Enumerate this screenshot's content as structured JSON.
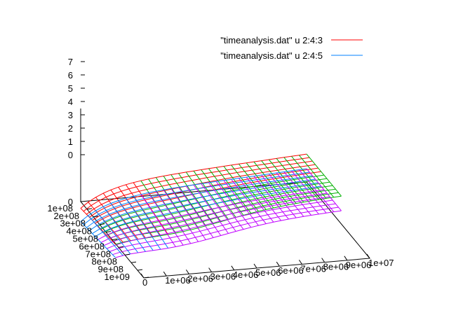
{
  "chart_data": {
    "type": "surface-3d",
    "title": "",
    "xlabel": "",
    "ylabel": "",
    "zlabel": "",
    "legend": {
      "placement": "top-right",
      "entries": [
        {
          "label": "\"timeanalysis.dat\" u 2:4:3",
          "color": "#ff0000"
        },
        {
          "label": "\"timeanalysis.dat\" u 2:4:5",
          "color": "#0080ff"
        }
      ]
    },
    "z_axis": {
      "range": [
        0,
        7
      ],
      "tick_labels": [
        "0",
        "1",
        "2",
        "3",
        "4",
        "5",
        "6",
        "7"
      ]
    },
    "y_axis": {
      "range": [
        0,
        1000000000.0
      ],
      "tick_labels": [
        "0",
        "1e+08",
        "2e+08",
        "3e+08",
        "4e+08",
        "5e+08",
        "6e+08",
        "7e+08",
        "8e+08",
        "9e+08",
        "1e+09"
      ]
    },
    "x_axis": {
      "range": [
        0,
        10000000.0
      ],
      "tick_labels": [
        "0",
        "1e+06",
        "2e+06",
        "3e+06",
        "4e+06",
        "5e+06",
        "6e+06",
        "7e+06",
        "8e+06",
        "9e+06",
        "1e+07"
      ]
    },
    "surfaces": [
      {
        "name": "\"timeanalysis.dat\" u 2:4:3",
        "color": "#ff0000",
        "below_color": "#00b000",
        "z_level": 1.1,
        "z_rise": 1.0
      },
      {
        "name": "\"timeanalysis.dat\" u 2:4:5",
        "color": "#0080ff",
        "below_color": "#c000ff",
        "z_level": 0.1,
        "z_rise": 0.9
      }
    ],
    "grid": false
  }
}
